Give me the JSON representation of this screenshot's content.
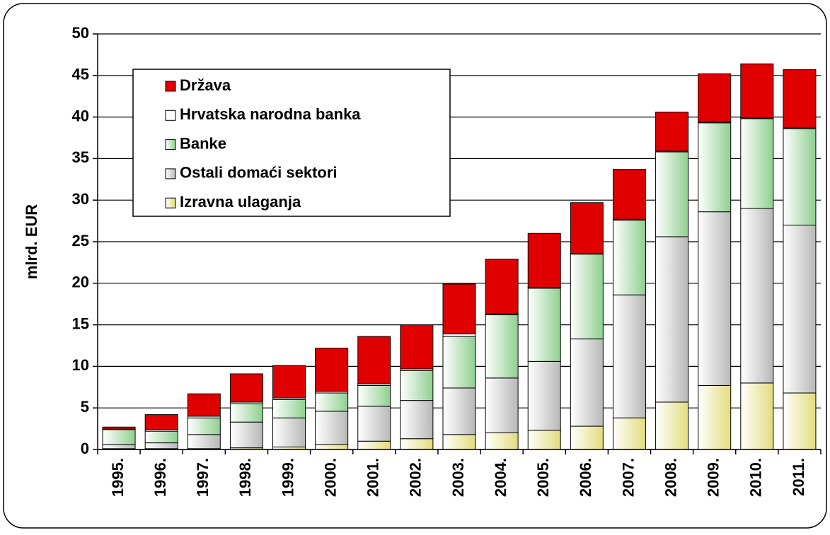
{
  "chart_data": {
    "type": "stacked_bar",
    "y_label": "mlrd. EUR",
    "categories": [
      "1995.",
      "1996.",
      "1997.",
      "1998.",
      "1999.",
      "2000.",
      "2001.",
      "2002.",
      "2003.",
      "2004.",
      "2005.",
      "2006.",
      "2007.",
      "2008.",
      "2009.",
      "2010.",
      "2011."
    ],
    "series": [
      {
        "name": "Država",
        "color": "#e00000",
        "values": [
          0.25,
          1.8,
          2.7,
          3.4,
          3.9,
          5.2,
          5.7,
          5.3,
          6.0,
          6.6,
          6.5,
          6.1,
          6.0,
          4.7,
          5.8,
          6.5,
          7.0
        ]
      },
      {
        "name": "Hrvatska narodna banka",
        "color": "#ffffff",
        "values": [
          0.05,
          0.2,
          0.2,
          0.2,
          0.2,
          0.2,
          0.2,
          0.2,
          0.3,
          0.1,
          0.1,
          0.1,
          0.1,
          0.1,
          0.1,
          0.1,
          0.1
        ]
      },
      {
        "name": "Banke",
        "color": "#8fcf90",
        "values": [
          1.8,
          1.4,
          2.0,
          2.2,
          2.2,
          2.2,
          2.5,
          3.6,
          6.2,
          7.6,
          8.8,
          10.2,
          9.0,
          10.2,
          10.7,
          10.8,
          11.6
        ]
      },
      {
        "name": "Ostali domaći sektori",
        "color": "#b8b8b8",
        "values": [
          0.5,
          0.7,
          1.7,
          3.1,
          3.5,
          4.0,
          4.2,
          4.6,
          5.6,
          6.6,
          8.3,
          10.5,
          14.8,
          19.9,
          20.9,
          21.0,
          20.2
        ]
      },
      {
        "name": "Izravna ulaganja",
        "color": "#e2dc7c",
        "values": [
          0.1,
          0.1,
          0.1,
          0.2,
          0.3,
          0.6,
          1.0,
          1.3,
          1.8,
          2.0,
          2.3,
          2.8,
          3.8,
          5.7,
          7.7,
          8.0,
          6.8
        ]
      }
    ],
    "ylim": [
      0,
      50
    ],
    "yticks": [
      0,
      5,
      10,
      15,
      20,
      25,
      30,
      35,
      40,
      45,
      50
    ],
    "grid": true
  }
}
